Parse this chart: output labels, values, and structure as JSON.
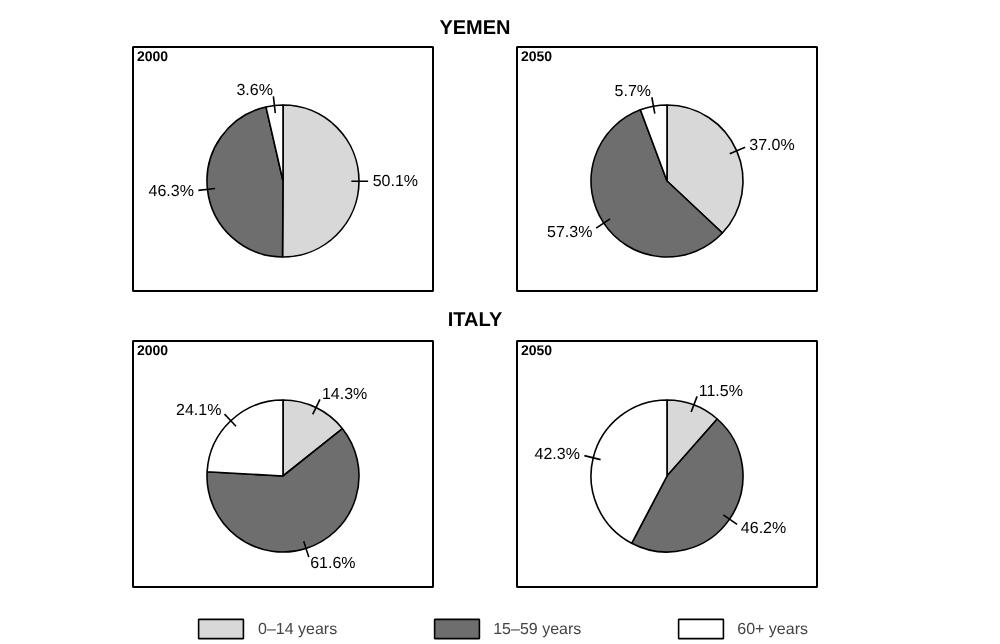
{
  "chart_data": [
    {
      "type": "pie",
      "title": "2000",
      "annotations": [
        "YEMEN"
      ],
      "categories": [
        "0–14 years",
        "15–59 years",
        "60+ years"
      ],
      "values": [
        50.1,
        46.3,
        3.6
      ],
      "value_labels": [
        "50.1%",
        "46.3%",
        "3.6%"
      ],
      "colors": [
        "#d8d8d8",
        "#6e6e6e",
        "#ffffff"
      ],
      "legend": "bottom"
    },
    {
      "type": "pie",
      "title": "2050",
      "categories": [
        null,
        null,
        null
      ],
      "values": [
        37.0,
        57.3,
        5.7
      ],
      "value_labels": [
        "37.0%",
        "57.3%",
        "5.7%"
      ],
      "colors": [
        "#d8d8d8",
        "#6e6e6e",
        "#ffffff"
      ]
    },
    {
      "type": "pie",
      "title": "2000",
      "annotations": [
        "ITALY"
      ],
      "categories": [
        null,
        null,
        null
      ],
      "values": [
        14.3,
        61.6,
        24.1
      ],
      "value_labels": [
        "14.3%",
        "61.6%",
        "24.1%"
      ],
      "colors": [
        "#d8d8d8",
        "#6e6e6e",
        "#ffffff"
      ]
    },
    {
      "type": "pie",
      "title": "2050",
      "categories": [
        null,
        null,
        null
      ],
      "values": [
        11.5,
        46.2,
        42.3
      ],
      "value_labels": [
        "11.5%",
        "46.2%",
        "42.3%"
      ],
      "colors": [
        "#d8d8d8",
        "#6e6e6e",
        "#ffffff"
      ]
    }
  ]
}
